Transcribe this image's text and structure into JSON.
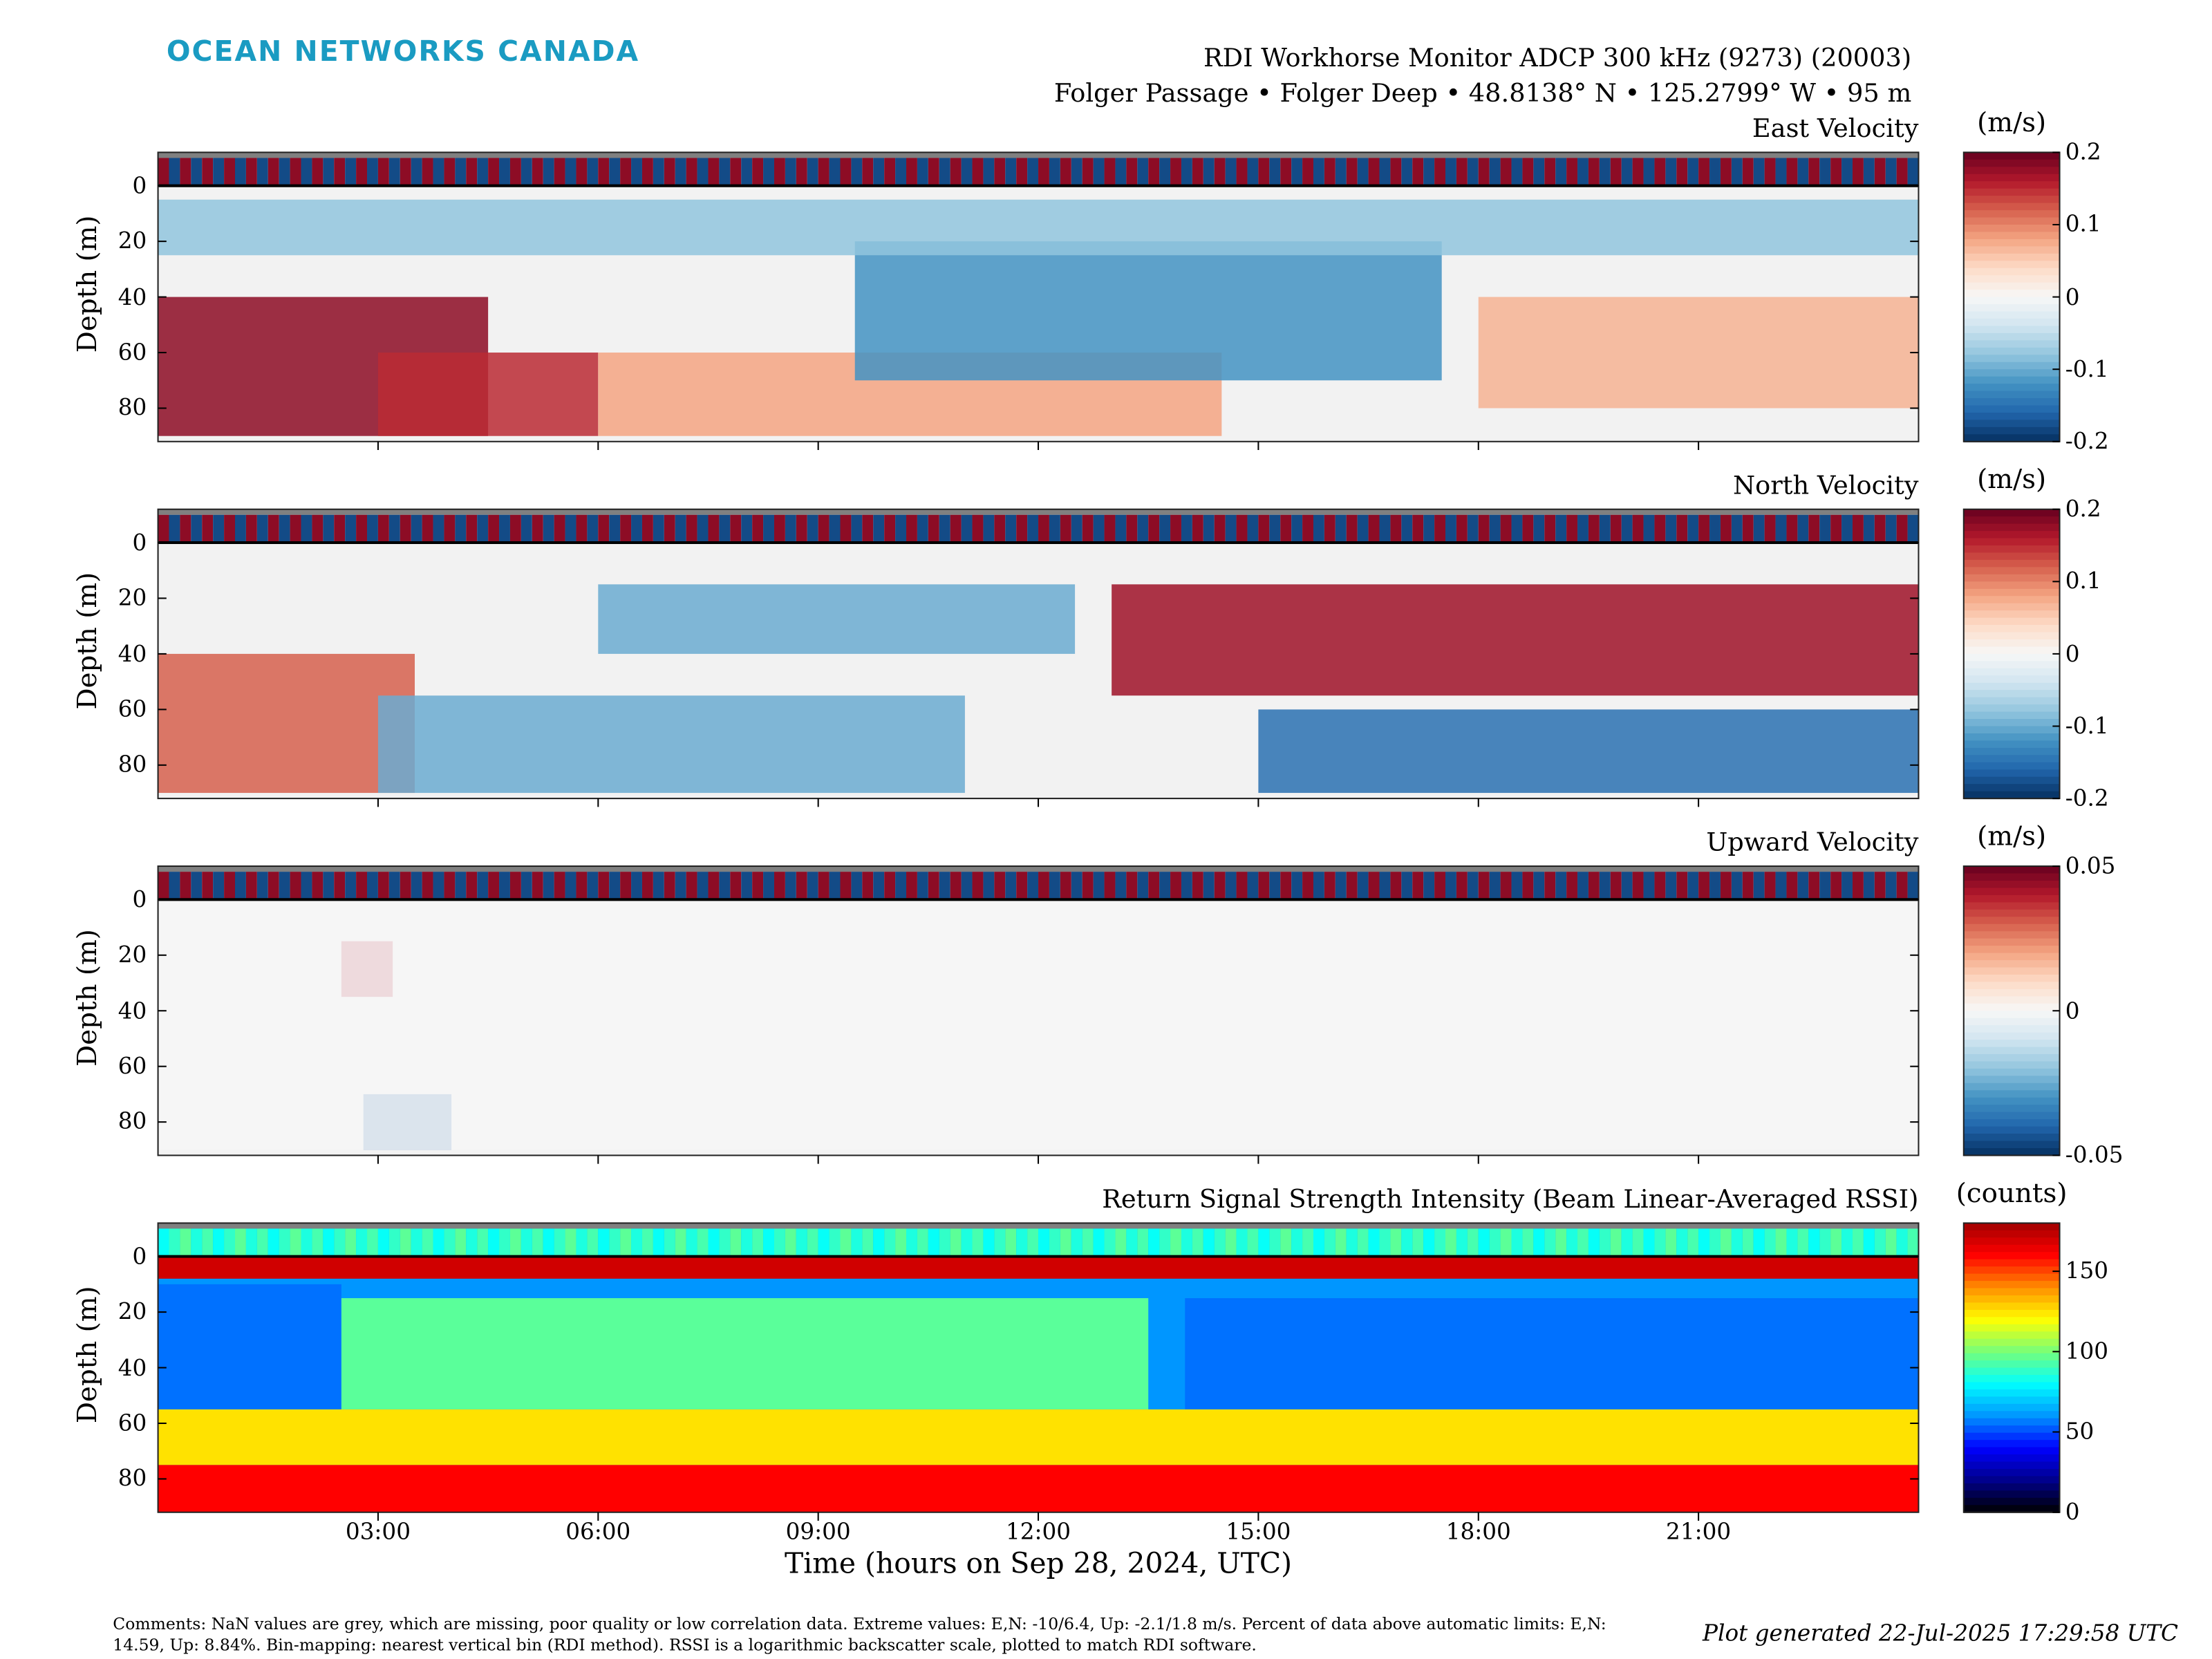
{
  "brand": "OCEAN NETWORKS CANADA",
  "header": {
    "title": "RDI Workhorse Monitor ADCP 300 kHz (9273) (20003)",
    "subtitle": "Folger Passage • Folger Deep • 48.8138° N • 125.2799° W • 95 m"
  },
  "colors": {
    "brand": "#1a9bc2",
    "nan_grey": "#808080",
    "diverging_low": "#053061",
    "diverging_mid": "#f7f7f7",
    "diverging_high": "#67001f"
  },
  "chart_data": [
    {
      "type": "heatmap",
      "title": "East Velocity",
      "ylabel": "Depth (m)",
      "yticks": [
        "0",
        "20",
        "40",
        "60",
        "80"
      ],
      "ylim": [
        -12,
        92
      ],
      "colorbar": {
        "unit": "(m/s)",
        "ticks": [
          "0.2",
          "0.1",
          "0",
          "-0.1",
          "-0.2"
        ],
        "range": [
          -0.2,
          0.2
        ],
        "colormap": "diverging-red-blue"
      },
      "features": [
        {
          "x": [
            0.0,
            4.5
          ],
          "y": [
            40,
            90
          ],
          "value": 0.18
        },
        {
          "x": [
            3.0,
            6.0
          ],
          "y": [
            60,
            90
          ],
          "value": 0.15
        },
        {
          "x": [
            6.0,
            14.5
          ],
          "y": [
            60,
            90
          ],
          "value": 0.08
        },
        {
          "x": [
            9.5,
            17.5
          ],
          "y": [
            20,
            70
          ],
          "value": -0.12
        },
        {
          "x": [
            18.0,
            24.0
          ],
          "y": [
            40,
            80
          ],
          "value": 0.07
        },
        {
          "x": [
            0.0,
            24.0
          ],
          "y": [
            5,
            25
          ],
          "value": -0.08
        }
      ]
    },
    {
      "type": "heatmap",
      "title": "North Velocity",
      "ylabel": "Depth (m)",
      "yticks": [
        "0",
        "20",
        "40",
        "60",
        "80"
      ],
      "ylim": [
        -12,
        92
      ],
      "colorbar": {
        "unit": "(m/s)",
        "ticks": [
          "0.2",
          "0.1",
          "0",
          "-0.1",
          "-0.2"
        ],
        "range": [
          -0.2,
          0.2
        ],
        "colormap": "diverging-red-blue"
      },
      "features": [
        {
          "x": [
            0.0,
            3.5
          ],
          "y": [
            40,
            90
          ],
          "value": 0.12
        },
        {
          "x": [
            3.0,
            11.0
          ],
          "y": [
            55,
            90
          ],
          "value": -0.1
        },
        {
          "x": [
            6.0,
            12.5
          ],
          "y": [
            15,
            40
          ],
          "value": -0.1
        },
        {
          "x": [
            13.0,
            24.0
          ],
          "y": [
            15,
            55
          ],
          "value": 0.17
        },
        {
          "x": [
            15.0,
            24.0
          ],
          "y": [
            60,
            90
          ],
          "value": -0.15
        }
      ]
    },
    {
      "type": "heatmap",
      "title": "Upward Velocity",
      "ylabel": "Depth (m)",
      "yticks": [
        "0",
        "20",
        "40",
        "60",
        "80"
      ],
      "ylim": [
        -12,
        92
      ],
      "colorbar": {
        "unit": "(m/s)",
        "ticks": [
          "0.05",
          "0",
          "-0.05"
        ],
        "range": [
          -0.05,
          0.05
        ],
        "colormap": "diverging-red-blue"
      },
      "features": [
        {
          "x": [
            2.5,
            3.2
          ],
          "y": [
            15,
            35
          ],
          "value": 0.04
        },
        {
          "x": [
            2.8,
            4.0
          ],
          "y": [
            70,
            90
          ],
          "value": -0.04
        },
        {
          "x": [
            0.0,
            24.0
          ],
          "y": [
            0,
            90
          ],
          "value": 0.0
        }
      ]
    },
    {
      "type": "heatmap",
      "title": "Return Signal Strength Intensity (Beam Linear-Averaged RSSI)",
      "ylabel": "Depth (m)",
      "yticks": [
        "0",
        "20",
        "40",
        "60",
        "80"
      ],
      "ylim": [
        -12,
        92
      ],
      "colorbar": {
        "unit": "(counts)",
        "ticks": [
          "150",
          "100",
          "50",
          "0"
        ],
        "range": [
          0,
          180
        ],
        "colormap": "jet"
      },
      "features": [
        {
          "x": [
            0.0,
            24.0
          ],
          "y": [
            0,
            8
          ],
          "value": 170
        },
        {
          "x": [
            0.0,
            2.5
          ],
          "y": [
            10,
            55
          ],
          "value": 55
        },
        {
          "x": [
            2.5,
            13.5
          ],
          "y": [
            15,
            55
          ],
          "value": 95
        },
        {
          "x": [
            14.0,
            24.0
          ],
          "y": [
            15,
            55
          ],
          "value": 55
        },
        {
          "x": [
            0.0,
            24.0
          ],
          "y": [
            55,
            75
          ],
          "value": 125
        },
        {
          "x": [
            0.0,
            24.0
          ],
          "y": [
            75,
            92
          ],
          "value": 160
        }
      ]
    }
  ],
  "xaxis": {
    "label": "Time (hours on Sep 28, 2024, UTC)",
    "range_hours": [
      0,
      24
    ],
    "ticks": [
      "03:00",
      "06:00",
      "09:00",
      "12:00",
      "15:00",
      "18:00",
      "21:00"
    ],
    "tick_hours": [
      3,
      6,
      9,
      12,
      15,
      18,
      21
    ]
  },
  "footer": {
    "comments": "Comments: NaN values are grey, which are missing, poor quality or low correlation data. Extreme values: E,N: -10/6.4, Up: -2.1/1.8 m/s. Percent of data above automatic limits: E,N: 14.59, Up: 8.84%. Bin-mapping: nearest vertical bin (RDI method). RSSI is a logarithmic backscatter scale, plotted to match RDI software.",
    "generated": "Plot generated 22-Jul-2025 17:29:58 UTC"
  }
}
